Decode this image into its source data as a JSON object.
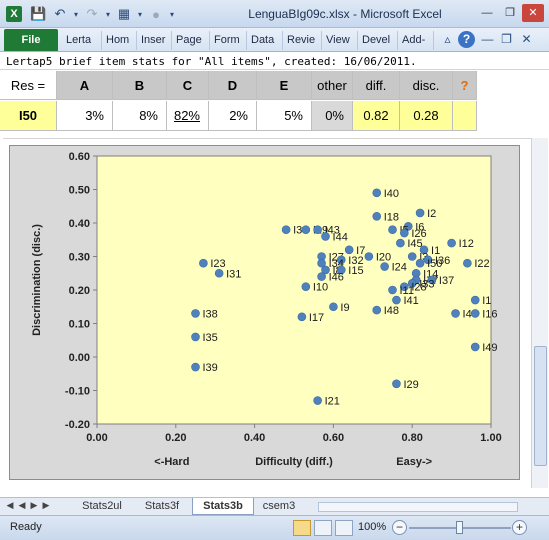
{
  "window": {
    "title": "LenguaBIg09c.xlsx  -  Microsoft Excel",
    "app_icon": "X"
  },
  "ribbon": {
    "file": "File",
    "tabs": [
      "Lerta",
      "Hom",
      "Inser",
      "Page",
      "Form",
      "Data",
      "Revie",
      "View",
      "Devel",
      "Add-"
    ]
  },
  "sheet": {
    "header_line": "Lertap5 brief item stats for \"All items\", created: 16/06/2011.",
    "columns": [
      "Res =",
      "A",
      "B",
      "C",
      "D",
      "E",
      "other",
      "diff.",
      "disc.",
      "?"
    ],
    "row": {
      "item": "I50",
      "values": [
        "3%",
        "8%",
        "82%",
        "2%",
        "5%",
        "0%",
        "0.82",
        "0.28",
        ""
      ]
    }
  },
  "chart_data": {
    "type": "scatter",
    "title": "",
    "xlabel": "Difficulty (diff.)",
    "xlabel_left": "<-Hard",
    "xlabel_right": "Easy->",
    "ylabel": "Discrimination (disc.)",
    "xlim": [
      0.0,
      1.0
    ],
    "ylim": [
      -0.2,
      0.6
    ],
    "xticks": [
      "0.00",
      "0.20",
      "0.40",
      "0.60",
      "0.80",
      "1.00"
    ],
    "yticks": [
      "0.60",
      "0.50",
      "0.40",
      "0.30",
      "0.20",
      "0.10",
      "0.00",
      "-0.10",
      "-0.20"
    ],
    "plot_color": "#ffffc0",
    "marker_color": "#4f81bd",
    "points": [
      {
        "label": "I40",
        "x": 0.71,
        "y": 0.49
      },
      {
        "label": "I2",
        "x": 0.82,
        "y": 0.43
      },
      {
        "label": "I18",
        "x": 0.71,
        "y": 0.42
      },
      {
        "label": "I6",
        "x": 0.79,
        "y": 0.39
      },
      {
        "label": "I30",
        "x": 0.48,
        "y": 0.38
      },
      {
        "label": "I19",
        "x": 0.53,
        "y": 0.38
      },
      {
        "label": "I43",
        "x": 0.56,
        "y": 0.38
      },
      {
        "label": "I44",
        "x": 0.58,
        "y": 0.36
      },
      {
        "label": "I5",
        "x": 0.75,
        "y": 0.38
      },
      {
        "label": "I26",
        "x": 0.78,
        "y": 0.37
      },
      {
        "label": "I12",
        "x": 0.9,
        "y": 0.34
      },
      {
        "label": "I45",
        "x": 0.77,
        "y": 0.34
      },
      {
        "label": "I7",
        "x": 0.64,
        "y": 0.32
      },
      {
        "label": "I1",
        "x": 0.83,
        "y": 0.32
      },
      {
        "label": "I23",
        "x": 0.27,
        "y": 0.28
      },
      {
        "label": "I27",
        "x": 0.57,
        "y": 0.3
      },
      {
        "label": "I32",
        "x": 0.62,
        "y": 0.29
      },
      {
        "label": "I20",
        "x": 0.69,
        "y": 0.3
      },
      {
        "label": "I3",
        "x": 0.8,
        "y": 0.3
      },
      {
        "label": "I36",
        "x": 0.84,
        "y": 0.29
      },
      {
        "label": "I34",
        "x": 0.57,
        "y": 0.28
      },
      {
        "label": "I50",
        "x": 0.82,
        "y": 0.28
      },
      {
        "label": "I22",
        "x": 0.94,
        "y": 0.28
      },
      {
        "label": "I31",
        "x": 0.31,
        "y": 0.25
      },
      {
        "label": "I8",
        "x": 0.58,
        "y": 0.26
      },
      {
        "label": "I15",
        "x": 0.62,
        "y": 0.26
      },
      {
        "label": "I24",
        "x": 0.73,
        "y": 0.27
      },
      {
        "label": "I14",
        "x": 0.81,
        "y": 0.25
      },
      {
        "label": "I46",
        "x": 0.57,
        "y": 0.24
      },
      {
        "label": "I47",
        "x": 0.81,
        "y": 0.23
      },
      {
        "label": "I37",
        "x": 0.85,
        "y": 0.23
      },
      {
        "label": "I33",
        "x": 0.8,
        "y": 0.22
      },
      {
        "label": "I28",
        "x": 0.78,
        "y": 0.21
      },
      {
        "label": "I10",
        "x": 0.53,
        "y": 0.21
      },
      {
        "label": "I11",
        "x": 0.75,
        "y": 0.2
      },
      {
        "label": "I41",
        "x": 0.76,
        "y": 0.17
      },
      {
        "label": "I9",
        "x": 0.6,
        "y": 0.15
      },
      {
        "label": "I38",
        "x": 0.25,
        "y": 0.13
      },
      {
        "label": "I17",
        "x": 0.52,
        "y": 0.12
      },
      {
        "label": "I48",
        "x": 0.71,
        "y": 0.14
      },
      {
        "label": "I1",
        "x": 0.96,
        "y": 0.17
      },
      {
        "label": "I4",
        "x": 0.91,
        "y": 0.13
      },
      {
        "label": "I16",
        "x": 0.96,
        "y": 0.13
      },
      {
        "label": "I35",
        "x": 0.25,
        "y": 0.06
      },
      {
        "label": "I49",
        "x": 0.96,
        "y": 0.03
      },
      {
        "label": "I39",
        "x": 0.25,
        "y": -0.03
      },
      {
        "label": "I29",
        "x": 0.76,
        "y": -0.08
      },
      {
        "label": "I21",
        "x": 0.56,
        "y": -0.13
      }
    ]
  },
  "sheet_tabs": [
    "Stats2ul",
    "Stats3f",
    "Stats3b",
    "csem3"
  ],
  "active_sheet": "Stats3b",
  "status": {
    "ready": "Ready",
    "zoom": "100%"
  }
}
